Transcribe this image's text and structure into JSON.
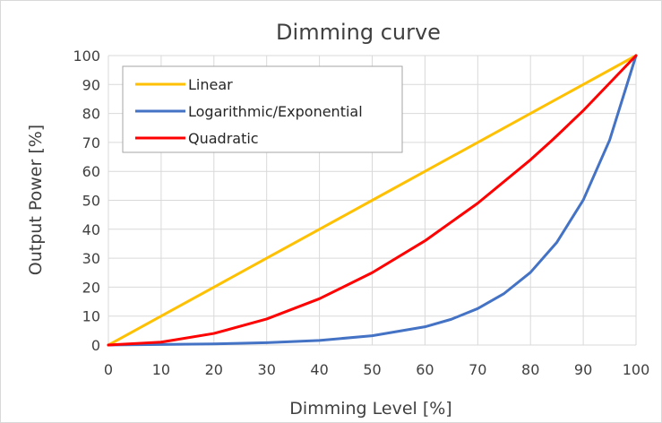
{
  "chart_data": {
    "type": "line",
    "title": "Dimming curve",
    "xlabel": "Dimming Level [%]",
    "ylabel": "Output Power [%]",
    "xlim": [
      0,
      100
    ],
    "ylim": [
      0,
      100
    ],
    "x_ticks": [
      "0",
      "10",
      "20",
      "30",
      "40",
      "50",
      "60",
      "70",
      "80",
      "90",
      "100"
    ],
    "y_ticks": [
      "0",
      "10",
      "20",
      "30",
      "40",
      "50",
      "60",
      "70",
      "80",
      "90",
      "100"
    ],
    "grid": true,
    "legend_position": "top-left",
    "series": [
      {
        "name": "Linear",
        "color": "#FFC000",
        "x": [
          0,
          10,
          20,
          30,
          40,
          50,
          60,
          70,
          80,
          90,
          100
        ],
        "y": [
          0,
          10,
          20,
          30,
          40,
          50,
          60,
          70,
          80,
          90,
          100
        ]
      },
      {
        "name": "Logarithmic/Exponential",
        "color": "#4472C4",
        "x": [
          0,
          10,
          20,
          30,
          40,
          50,
          60,
          65,
          70,
          75,
          80,
          85,
          90,
          95,
          100
        ],
        "y": [
          0,
          0.2,
          0.4,
          0.8,
          1.6,
          3.2,
          6.3,
          8.9,
          12.6,
          17.8,
          25.1,
          35.5,
          50.1,
          70.8,
          100
        ]
      },
      {
        "name": "Quadratic",
        "color": "#FF0000",
        "x": [
          0,
          10,
          20,
          30,
          40,
          50,
          60,
          70,
          80,
          84,
          85,
          90,
          100
        ],
        "y": [
          0,
          1,
          4,
          9,
          16,
          25,
          36,
          49,
          64,
          70.6,
          72.3,
          81,
          100
        ]
      }
    ]
  }
}
